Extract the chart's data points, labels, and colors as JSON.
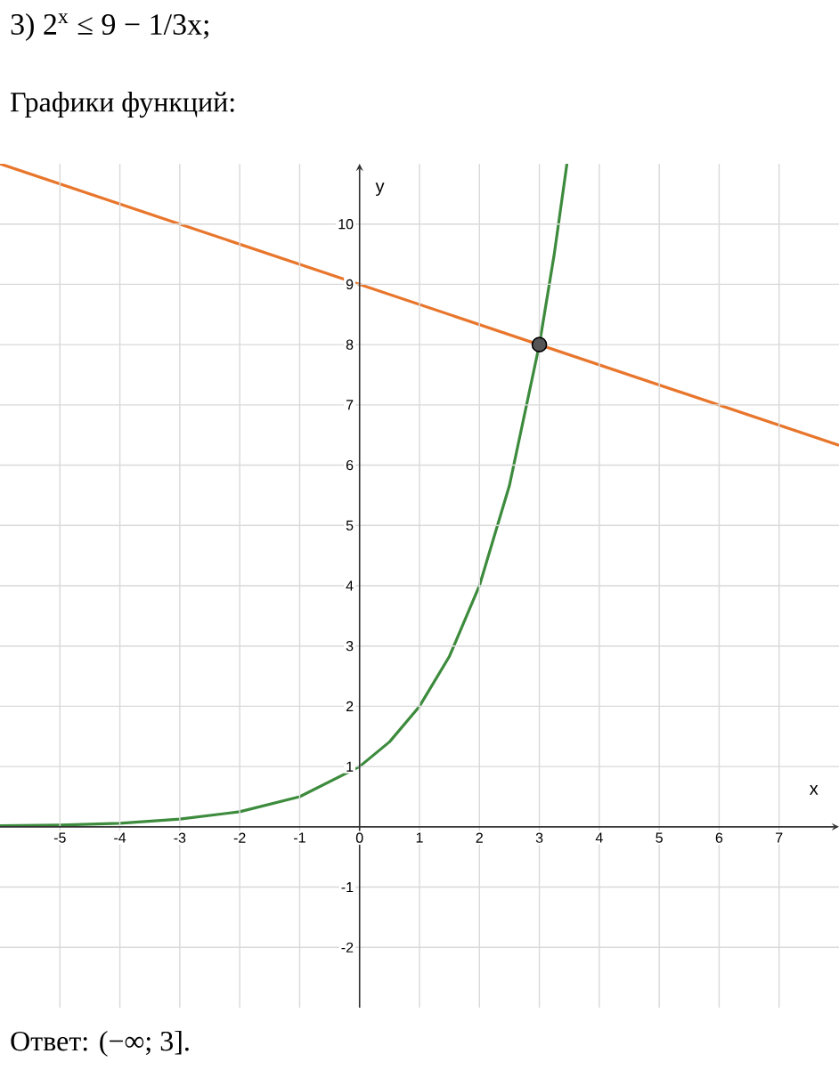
{
  "chart_data": {
    "type": "line",
    "title": "3) 2$^{x}$ ≤ 9 − 1/3x;",
    "subtitle": "Графики функций:",
    "xlabel": "x",
    "ylabel": "y",
    "annotations": [
      "Ответ: (−∞; 3]."
    ],
    "xlim": [
      -6,
      8
    ],
    "ylim": [
      -3,
      11
    ],
    "xticks": [
      -5,
      -4,
      -3,
      -2,
      -1,
      0,
      1,
      2,
      3,
      4,
      5,
      6,
      7
    ],
    "yticks": [
      -2,
      -1,
      1,
      2,
      3,
      4,
      5,
      6,
      7,
      8,
      9,
      10
    ],
    "grid": true,
    "series": [
      {
        "color": "#3d8b3d",
        "x": [
          -6,
          -5,
          -4,
          -3,
          -2,
          -1,
          0,
          0.5,
          1,
          1.5,
          2,
          2.5,
          3,
          3.25,
          3.46
        ],
        "values": [
          0.02,
          0.03,
          0.06,
          0.13,
          0.25,
          0.5,
          1,
          1.41,
          2,
          2.83,
          4,
          5.66,
          8,
          9.51,
          11
        ]
      },
      {
        "color": "#e8762c",
        "x": [
          -6,
          8
        ],
        "values": [
          11,
          6.33
        ]
      },
      {
        "type": "scatter",
        "color": "#555555",
        "x": [
          3
        ],
        "values": [
          8
        ]
      }
    ]
  }
}
